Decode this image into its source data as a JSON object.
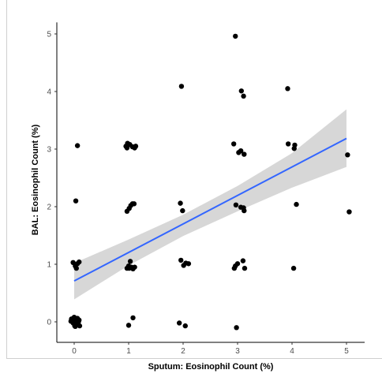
{
  "chart_data": {
    "type": "scatter",
    "xlabel": "Sputum: Eosinophil Count (%)",
    "ylabel": "BAL: Eosinophil Count (%)",
    "xlim": [
      -0.6,
      5.5
    ],
    "ylim": [
      -0.2,
      5.2
    ],
    "xticks": [
      "0",
      "1",
      "2",
      "3",
      "4",
      "5"
    ],
    "yticks": [
      "0",
      "1",
      "2",
      "3",
      "4",
      "5"
    ],
    "grid": false,
    "legend": "none",
    "colors": {
      "points": "#000000",
      "fit_line": "#3366ff",
      "confidence_band": "#bdbdbd"
    },
    "points": [
      [
        -0.05,
        0.05
      ],
      [
        0.0,
        0.08
      ],
      [
        0.03,
        0.02
      ],
      [
        -0.02,
        -0.02
      ],
      [
        0.05,
        -0.03
      ],
      [
        0.08,
        0.0
      ],
      [
        0.1,
        -0.07
      ],
      [
        0.02,
        -0.08
      ],
      [
        0.06,
        0.06
      ],
      [
        -0.06,
        0.01
      ],
      [
        0.09,
        0.03
      ],
      [
        0.04,
        -0.05
      ],
      [
        0.01,
        -0.07
      ],
      [
        0.07,
        0.04
      ],
      [
        -0.03,
        0.0
      ],
      [
        -0.02,
        1.03
      ],
      [
        0.02,
        0.97
      ],
      [
        0.06,
        1.01
      ],
      [
        0.09,
        1.04
      ],
      [
        0.04,
        0.93
      ],
      [
        0.03,
        2.1
      ],
      [
        0.06,
        3.06
      ],
      [
        0.95,
        3.05
      ],
      [
        0.98,
        3.1
      ],
      [
        1.02,
        3.08
      ],
      [
        0.97,
        3.02
      ],
      [
        1.07,
        3.04
      ],
      [
        1.13,
        3.05
      ],
      [
        1.11,
        3.02
      ],
      [
        0.97,
        1.92
      ],
      [
        1.01,
        1.97
      ],
      [
        1.04,
        2.02
      ],
      [
        1.07,
        2.05
      ],
      [
        1.1,
        2.05
      ],
      [
        0.97,
        0.93
      ],
      [
        1.0,
        0.97
      ],
      [
        1.03,
        1.05
      ],
      [
        1.05,
        0.95
      ],
      [
        1.08,
        0.92
      ],
      [
        1.11,
        0.95
      ],
      [
        1.01,
        0.93
      ],
      [
        1.0,
        -0.06
      ],
      [
        1.08,
        0.07
      ],
      [
        1.97,
        4.09
      ],
      [
        1.95,
        2.06
      ],
      [
        1.99,
        1.93
      ],
      [
        1.96,
        1.07
      ],
      [
        2.01,
        0.98
      ],
      [
        2.05,
        1.02
      ],
      [
        2.1,
        1.01
      ],
      [
        1.93,
        -0.02
      ],
      [
        2.04,
        -0.07
      ],
      [
        2.96,
        4.96
      ],
      [
        3.07,
        4.01
      ],
      [
        3.11,
        3.92
      ],
      [
        2.93,
        3.09
      ],
      [
        3.02,
        2.94
      ],
      [
        3.06,
        2.97
      ],
      [
        3.12,
        2.91
      ],
      [
        2.97,
        2.03
      ],
      [
        3.06,
        1.99
      ],
      [
        3.11,
        1.98
      ],
      [
        3.12,
        1.93
      ],
      [
        2.94,
        0.93
      ],
      [
        2.96,
        0.97
      ],
      [
        3.0,
        1.01
      ],
      [
        3.1,
        1.06
      ],
      [
        3.13,
        0.93
      ],
      [
        2.98,
        -0.1
      ],
      [
        3.92,
        4.05
      ],
      [
        3.93,
        3.09
      ],
      [
        4.05,
        3.07
      ],
      [
        4.04,
        3.01
      ],
      [
        4.08,
        2.04
      ],
      [
        4.03,
        0.93
      ],
      [
        5.02,
        2.9
      ],
      [
        5.05,
        1.91
      ]
    ],
    "fit": {
      "x_range": [
        0,
        5
      ],
      "intercept": 0.71,
      "slope": 0.495
    },
    "confidence_band": [
      [
        0,
        0.39,
        1.02
      ],
      [
        1,
        0.98,
        1.43
      ],
      [
        2,
        1.49,
        1.86
      ],
      [
        3,
        1.92,
        2.36
      ],
      [
        4,
        2.33,
        2.93
      ],
      [
        5,
        2.69,
        3.69
      ]
    ]
  }
}
